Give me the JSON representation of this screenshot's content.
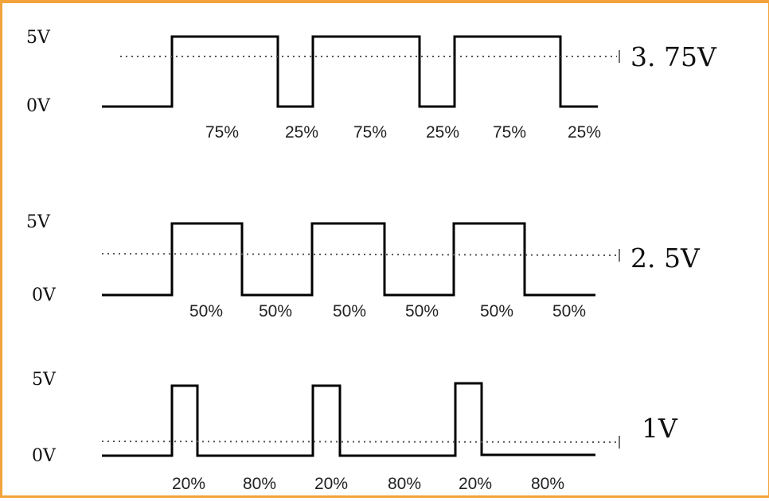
{
  "panels": [
    {
      "high_label": "5V",
      "low_label": "0V",
      "average_label": "3. 75V",
      "duty_cycle": 0.75,
      "segment_labels": [
        "75%",
        "25%",
        "75%",
        "25%",
        "75%",
        "25%"
      ]
    },
    {
      "high_label": "5V",
      "low_label": "0V",
      "average_label": "2. 5V",
      "duty_cycle": 0.5,
      "segment_labels": [
        "50%",
        "50%",
        "50%",
        "50%",
        "50%",
        "50%"
      ]
    },
    {
      "high_label": "5V",
      "low_label": "0V",
      "average_label": "1V",
      "duty_cycle": 0.2,
      "segment_labels": [
        "20%",
        "80%",
        "20%",
        "80%",
        "20%",
        "80%"
      ]
    }
  ],
  "colors": {
    "border": "#f3a33b",
    "waveform": "#000000",
    "average_line": "#555555"
  }
}
